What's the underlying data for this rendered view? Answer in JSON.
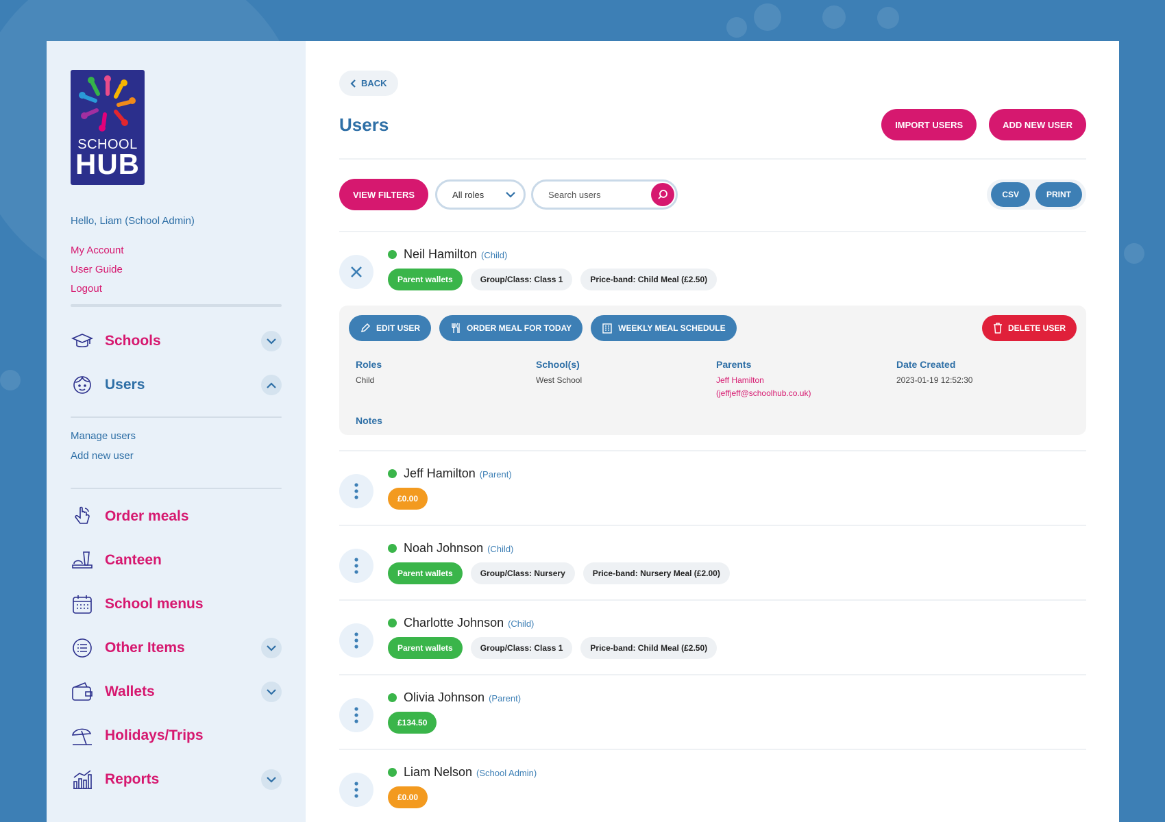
{
  "brand": {
    "line1": "SCHOOL",
    "line2": "HUB"
  },
  "sidebar": {
    "greeting": "Hello, Liam (School Admin)",
    "account_links": [
      "My Account",
      "User Guide",
      "Logout"
    ],
    "nav": {
      "schools": "Schools",
      "users": "Users",
      "order_meals": "Order meals",
      "canteen": "Canteen",
      "school_menus": "School menus",
      "other_items": "Other Items",
      "wallets": "Wallets",
      "holidays": "Holidays/Trips",
      "reports": "Reports"
    },
    "users_sub": [
      "Manage users",
      "Add new user"
    ]
  },
  "main": {
    "back_label": "BACK",
    "title": "Users",
    "import_label": "IMPORT USERS",
    "add_label": "ADD NEW USER",
    "view_filters_label": "VIEW FILTERS",
    "role_select": "All roles",
    "search_placeholder": "Search users",
    "csv_label": "CSV",
    "print_label": "PRINT"
  },
  "expanded": {
    "edit_label": "EDIT USER",
    "order_label": "ORDER MEAL FOR TODAY",
    "weekly_label": "WEEKLY MEAL SCHEDULE",
    "delete_label": "DELETE USER",
    "roles_h": "Roles",
    "roles_v": "Child",
    "schools_h": "School(s)",
    "schools_v": "West School",
    "parents_h": "Parents",
    "parents_name": "Jeff Hamilton",
    "parents_email": "(jeffjeff@schoolhub.co.uk)",
    "created_h": "Date Created",
    "created_v": "2023-01-19 12:52:30",
    "notes_h": "Notes"
  },
  "users": [
    {
      "name": "Neil Hamilton",
      "role": "(Child)",
      "tags": [
        "Parent wallets",
        "Group/Class: Class 1",
        "Price-band: Child Meal (£2.50)"
      ]
    },
    {
      "name": "Jeff Hamilton",
      "role": "(Parent)",
      "balance": "£0.00"
    },
    {
      "name": "Noah Johnson",
      "role": "(Child)",
      "tags": [
        "Parent wallets",
        "Group/Class: Nursery",
        "Price-band: Nursery Meal (£2.00)"
      ]
    },
    {
      "name": "Charlotte Johnson",
      "role": "(Child)",
      "tags": [
        "Parent wallets",
        "Group/Class: Class 1",
        "Price-band: Child Meal (£2.50)"
      ]
    },
    {
      "name": "Olivia Johnson",
      "role": "(Parent)",
      "balance": "£134.50"
    },
    {
      "name": "Liam Nelson",
      "role": "(School Admin)",
      "balance": "£0.00"
    }
  ],
  "colors": {
    "pink": "#d6186f",
    "blue": "#3d7fb5",
    "green": "#3ab54a",
    "orange": "#f39a1f",
    "red": "#e0203a"
  }
}
